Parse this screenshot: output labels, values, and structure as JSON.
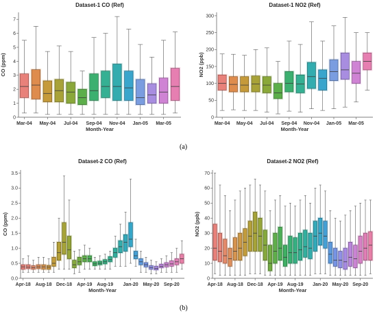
{
  "captions": {
    "a": "(a)",
    "b": "(b)"
  },
  "chart_data": [
    {
      "type": "boxplot",
      "title": "Dataset-1 CO (Ref)",
      "xlabel": "Month-Year",
      "ylabel": "CO (ppm)",
      "ylim": [
        0,
        7.5
      ],
      "yticks": [
        0,
        1,
        2,
        3,
        4,
        5,
        6,
        7
      ],
      "xtick_labels": [
        "Mar-04",
        "May-04",
        "Jul-04",
        "Sep-04",
        "Nov-04",
        "Jan-05",
        "Mar-05"
      ],
      "xtick_positions": [
        0,
        2,
        4,
        6,
        8,
        10,
        12
      ],
      "categories": [
        "Mar-04",
        "Apr-04",
        "May-04",
        "Jun-04",
        "Jul-04",
        "Aug-04",
        "Sep-04",
        "Oct-04",
        "Nov-04",
        "Dec-04",
        "Jan-05",
        "Feb-05",
        "Mar-05",
        "Apr-05"
      ],
      "boxes": [
        {
          "whislo": 0.3,
          "q1": 1.4,
          "med": 2.2,
          "q3": 3.1,
          "whishi": 5.5,
          "color": "#e8817a"
        },
        {
          "whislo": 0.3,
          "q1": 1.3,
          "med": 2.3,
          "q3": 3.4,
          "whishi": 6.5,
          "color": "#de8c4d"
        },
        {
          "whislo": 0.2,
          "q1": 1.1,
          "med": 1.7,
          "q3": 2.6,
          "whishi": 4.7,
          "color": "#c59a3a"
        },
        {
          "whislo": 0.2,
          "q1": 1.1,
          "med": 1.9,
          "q3": 2.7,
          "whishi": 5.1,
          "color": "#a8a238"
        },
        {
          "whislo": 0.2,
          "q1": 1.0,
          "med": 1.8,
          "q3": 2.5,
          "whishi": 4.7,
          "color": "#8aa83a"
        },
        {
          "whislo": 0.2,
          "q1": 0.9,
          "med": 1.4,
          "q3": 2.0,
          "whishi": 3.3,
          "color": "#5cae4a"
        },
        {
          "whislo": 0.2,
          "q1": 1.2,
          "med": 1.9,
          "q3": 3.1,
          "whishi": 5.7,
          "color": "#3cb070"
        },
        {
          "whislo": 0.2,
          "q1": 1.4,
          "med": 2.2,
          "q3": 3.3,
          "whishi": 6.0,
          "color": "#35b093"
        },
        {
          "whislo": 0.2,
          "q1": 1.2,
          "med": 2.2,
          "q3": 3.8,
          "whishi": 7.2,
          "color": "#33acaf"
        },
        {
          "whislo": 0.2,
          "q1": 1.2,
          "med": 2.1,
          "q3": 3.3,
          "whishi": 6.3,
          "color": "#3aa5cc"
        },
        {
          "whislo": 0.2,
          "q1": 0.9,
          "med": 1.4,
          "q3": 2.7,
          "whishi": 5.2,
          "color": "#7a9de0"
        },
        {
          "whislo": 0.2,
          "q1": 1.0,
          "med": 1.6,
          "q3": 2.4,
          "whishi": 4.3,
          "color": "#a88de0"
        },
        {
          "whislo": 0.2,
          "q1": 1.0,
          "med": 1.8,
          "q3": 2.8,
          "whishi": 5.5,
          "color": "#cf83d4"
        },
        {
          "whislo": 0.3,
          "q1": 1.2,
          "med": 2.2,
          "q3": 3.5,
          "whishi": 6.1,
          "color": "#e67fb1"
        }
      ]
    },
    {
      "type": "boxplot",
      "title": "Dataset-1 NO2 (Ref)",
      "xlabel": "Month-Year",
      "ylabel": "NO2 (ppb)",
      "ylim": [
        0,
        310
      ],
      "yticks": [
        0,
        50,
        100,
        150,
        200,
        250,
        300
      ],
      "xtick_labels": [
        "Mar-04",
        "May-04",
        "Jul-04",
        "Sep-04",
        "Nov-04",
        "Jan-05",
        "Mar-05"
      ],
      "xtick_positions": [
        0,
        2,
        4,
        6,
        8,
        10,
        12
      ],
      "categories": [
        "Mar-04",
        "Apr-04",
        "May-04",
        "Jun-04",
        "Jul-04",
        "Aug-04",
        "Sep-04",
        "Oct-04",
        "Nov-04",
        "Dec-04",
        "Jan-05",
        "Feb-05",
        "Mar-05",
        "Apr-05"
      ],
      "boxes": [
        {
          "whislo": 20,
          "q1": 80,
          "med": 100,
          "q3": 125,
          "whishi": 187,
          "color": "#e8817a"
        },
        {
          "whislo": 22,
          "q1": 75,
          "med": 97,
          "q3": 120,
          "whishi": 186,
          "color": "#de8c4d"
        },
        {
          "whislo": 20,
          "q1": 75,
          "med": 95,
          "q3": 120,
          "whishi": 183,
          "color": "#c59a3a"
        },
        {
          "whislo": 20,
          "q1": 75,
          "med": 98,
          "q3": 122,
          "whishi": 200,
          "color": "#a8a238"
        },
        {
          "whislo": 15,
          "q1": 72,
          "med": 95,
          "q3": 120,
          "whishi": 205,
          "color": "#8aa83a"
        },
        {
          "whislo": 10,
          "q1": 55,
          "med": 72,
          "q3": 100,
          "whishi": 165,
          "color": "#5cae4a"
        },
        {
          "whislo": 18,
          "q1": 75,
          "med": 100,
          "q3": 135,
          "whishi": 225,
          "color": "#3cb070"
        },
        {
          "whislo": 15,
          "q1": 72,
          "med": 98,
          "q3": 125,
          "whishi": 215,
          "color": "#35b093"
        },
        {
          "whislo": 25,
          "q1": 85,
          "med": 120,
          "q3": 162,
          "whishi": 282,
          "color": "#33acaf"
        },
        {
          "whislo": 20,
          "q1": 80,
          "med": 115,
          "q3": 140,
          "whishi": 225,
          "color": "#3aa5cc"
        },
        {
          "whislo": 25,
          "q1": 108,
          "med": 135,
          "q3": 170,
          "whishi": 270,
          "color": "#7a9de0"
        },
        {
          "whislo": 30,
          "q1": 112,
          "med": 140,
          "q3": 190,
          "whishi": 295,
          "color": "#a88de0"
        },
        {
          "whislo": 45,
          "q1": 100,
          "med": 130,
          "q3": 165,
          "whishi": 250,
          "color": "#cf83d4"
        },
        {
          "whislo": 80,
          "q1": 140,
          "med": 165,
          "q3": 190,
          "whishi": 250,
          "color": "#e67fb1"
        }
      ]
    },
    {
      "type": "boxplot",
      "title": "Dataset-2 CO (Ref)",
      "xlabel": "Month-Year",
      "ylabel": "CO (ppm)",
      "ylim": [
        0,
        3.6
      ],
      "yticks": [
        0.0,
        0.5,
        1.0,
        1.5,
        2.0,
        2.5,
        3.0,
        3.5
      ],
      "ytick_labels": [
        "0.0",
        "0.5",
        "1.0",
        "1.5",
        "2.0",
        "2.5",
        "3.0",
        "3.5"
      ],
      "xtick_labels": [
        "Apr-18",
        "Aug-18",
        "Dec-18",
        "Apr-19",
        "Aug-19",
        "Jan-20",
        "May-20",
        "Sep-20"
      ],
      "xtick_positions": [
        0,
        4,
        8,
        12,
        16,
        21,
        25,
        29
      ],
      "categories": [
        "Apr-18",
        "May-18",
        "Jun-18",
        "Jul-18",
        "Aug-18",
        "Sep-18",
        "Oct-18",
        "Nov-18",
        "Dec-18",
        "Jan-19",
        "Feb-19",
        "Mar-19",
        "Apr-19",
        "May-19",
        "Jun-19",
        "Jul-19",
        "Aug-19",
        "Sep-19",
        "Oct-19",
        "Nov-19",
        "Dec-19",
        "Jan-20",
        "Feb-20",
        "Mar-20",
        "Apr-20",
        "May-20",
        "Jun-20",
        "Jul-20",
        "Aug-20",
        "Sep-20",
        "Oct-20",
        "Nov-20"
      ],
      "boxes": [
        {
          "whislo": 0.2,
          "q1": 0.3,
          "med": 0.38,
          "q3": 0.45,
          "whishi": 0.65,
          "color": "#e8817a"
        },
        {
          "whislo": 0.2,
          "q1": 0.32,
          "med": 0.37,
          "q3": 0.45,
          "whishi": 0.75,
          "color": "#e6857a"
        },
        {
          "whislo": 0.2,
          "q1": 0.3,
          "med": 0.36,
          "q3": 0.42,
          "whishi": 0.6,
          "color": "#e38a6a"
        },
        {
          "whislo": 0.2,
          "q1": 0.32,
          "med": 0.38,
          "q3": 0.45,
          "whishi": 0.7,
          "color": "#dd8f5c"
        },
        {
          "whislo": 0.2,
          "q1": 0.3,
          "med": 0.38,
          "q3": 0.45,
          "whishi": 0.7,
          "color": "#d6944f"
        },
        {
          "whislo": 0.2,
          "q1": 0.3,
          "med": 0.37,
          "q3": 0.43,
          "whishi": 0.65,
          "color": "#cd9844"
        },
        {
          "whislo": 0.2,
          "q1": 0.4,
          "med": 0.5,
          "q3": 0.7,
          "whishi": 1.2,
          "color": "#c29c3c"
        },
        {
          "whislo": 0.3,
          "q1": 0.6,
          "med": 0.85,
          "q3": 1.2,
          "whishi": 2.0,
          "color": "#b5a038"
        },
        {
          "whislo": 0.3,
          "q1": 0.8,
          "med": 1.2,
          "q3": 1.85,
          "whishi": 3.4,
          "color": "#a6a338"
        },
        {
          "whislo": 0.3,
          "q1": 0.65,
          "med": 0.95,
          "q3": 1.4,
          "whishi": 2.6,
          "color": "#97a63a"
        },
        {
          "whislo": 0.15,
          "q1": 0.35,
          "med": 0.45,
          "q3": 0.6,
          "whishi": 0.9,
          "color": "#86a93d"
        },
        {
          "whislo": 0.2,
          "q1": 0.45,
          "med": 0.55,
          "q3": 0.7,
          "whishi": 0.95,
          "color": "#73ac42"
        },
        {
          "whislo": 0.3,
          "q1": 0.55,
          "med": 0.65,
          "q3": 0.75,
          "whishi": 1.1,
          "color": "#5fae4a"
        },
        {
          "whislo": 0.3,
          "q1": 0.55,
          "med": 0.65,
          "q3": 0.75,
          "whishi": 1.0,
          "color": "#4caf56"
        },
        {
          "whislo": 0.3,
          "q1": 0.42,
          "med": 0.48,
          "q3": 0.55,
          "whishi": 0.7,
          "color": "#3fb064"
        },
        {
          "whislo": 0.3,
          "q1": 0.45,
          "med": 0.5,
          "q3": 0.57,
          "whishi": 0.75,
          "color": "#39b073"
        },
        {
          "whislo": 0.3,
          "q1": 0.48,
          "med": 0.55,
          "q3": 0.62,
          "whishi": 0.8,
          "color": "#36b082"
        },
        {
          "whislo": 0.3,
          "q1": 0.55,
          "med": 0.62,
          "q3": 0.72,
          "whishi": 0.9,
          "color": "#34b090"
        },
        {
          "whislo": 0.4,
          "q1": 0.7,
          "med": 0.85,
          "q3": 1.0,
          "whishi": 1.4,
          "color": "#33af9e"
        },
        {
          "whislo": 0.4,
          "q1": 0.85,
          "med": 1.05,
          "q3": 1.25,
          "whishi": 1.8,
          "color": "#33adac"
        },
        {
          "whislo": 0.4,
          "q1": 0.9,
          "med": 1.2,
          "q3": 1.45,
          "whishi": 2.2,
          "color": "#34aaba"
        },
        {
          "whislo": 0.5,
          "q1": 1.05,
          "med": 1.3,
          "q3": 1.85,
          "whishi": 3.3,
          "color": "#36a6c8"
        },
        {
          "whislo": 0.4,
          "q1": 0.65,
          "med": 0.75,
          "q3": 0.9,
          "whishi": 1.3,
          "color": "#45a0d5"
        },
        {
          "whislo": 0.2,
          "q1": 0.45,
          "med": 0.55,
          "q3": 0.65,
          "whishi": 0.9,
          "color": "#5c9ade"
        },
        {
          "whislo": 0.2,
          "q1": 0.38,
          "med": 0.45,
          "q3": 0.52,
          "whishi": 0.7,
          "color": "#7794e4"
        },
        {
          "whislo": 0.15,
          "q1": 0.3,
          "med": 0.36,
          "q3": 0.42,
          "whishi": 0.6,
          "color": "#908fe6"
        },
        {
          "whislo": 0.15,
          "q1": 0.28,
          "med": 0.33,
          "q3": 0.4,
          "whishi": 0.55,
          "color": "#a78ae3"
        },
        {
          "whislo": 0.2,
          "q1": 0.35,
          "med": 0.4,
          "q3": 0.47,
          "whishi": 0.65,
          "color": "#ba86dc"
        },
        {
          "whislo": 0.2,
          "q1": 0.38,
          "med": 0.45,
          "q3": 0.52,
          "whishi": 0.75,
          "color": "#ca83d2"
        },
        {
          "whislo": 0.2,
          "q1": 0.4,
          "med": 0.48,
          "q3": 0.58,
          "whishi": 0.85,
          "color": "#d781c5"
        },
        {
          "whislo": 0.2,
          "q1": 0.45,
          "med": 0.55,
          "q3": 0.65,
          "whishi": 1.0,
          "color": "#e17fb6"
        },
        {
          "whislo": 0.3,
          "q1": 0.5,
          "med": 0.65,
          "q3": 0.8,
          "whishi": 1.25,
          "color": "#e77fa7"
        }
      ]
    },
    {
      "type": "boxplot",
      "title": "Dataset-2 NO2 (Ref)",
      "xlabel": "Month-Year",
      "ylabel": "NO2 (ppb)",
      "ylim": [
        0,
        72
      ],
      "yticks": [
        0,
        10,
        20,
        30,
        40,
        50,
        60,
        70
      ],
      "xtick_labels": [
        "Apr-18",
        "Aug-18",
        "Dec-18",
        "Apr-19",
        "Aug-19",
        "Jan-20",
        "May-20",
        "Sep-20"
      ],
      "xtick_positions": [
        0,
        4,
        8,
        12,
        16,
        21,
        25,
        29
      ],
      "categories": [
        "Apr-18",
        "May-18",
        "Jun-18",
        "Jul-18",
        "Aug-18",
        "Sep-18",
        "Oct-18",
        "Nov-18",
        "Dec-18",
        "Jan-19",
        "Feb-19",
        "Mar-19",
        "Apr-19",
        "May-19",
        "Jun-19",
        "Jul-19",
        "Aug-19",
        "Sep-19",
        "Oct-19",
        "Nov-19",
        "Dec-19",
        "Jan-20",
        "Feb-20",
        "Mar-20",
        "Apr-20",
        "May-20",
        "Jun-20",
        "Jul-20",
        "Aug-20",
        "Sep-20",
        "Oct-20",
        "Nov-20"
      ],
      "boxes": [
        {
          "whislo": 3,
          "q1": 12,
          "med": 20,
          "q3": 36,
          "whishi": 70,
          "color": "#e8817a"
        },
        {
          "whislo": 2,
          "q1": 11,
          "med": 18,
          "q3": 30,
          "whishi": 62,
          "color": "#e6857a"
        },
        {
          "whislo": 2,
          "q1": 10,
          "med": 15,
          "q3": 26,
          "whishi": 55,
          "color": "#e38a6a"
        },
        {
          "whislo": 2,
          "q1": 8,
          "med": 13,
          "q3": 20,
          "whishi": 45,
          "color": "#dd8f5c"
        },
        {
          "whislo": 2,
          "q1": 12,
          "med": 18,
          "q3": 27,
          "whishi": 52,
          "color": "#d6944f"
        },
        {
          "whislo": 2,
          "q1": 12,
          "med": 20,
          "q3": 30,
          "whishi": 58,
          "color": "#cd9844"
        },
        {
          "whislo": 2,
          "q1": 15,
          "med": 24,
          "q3": 33,
          "whishi": 60,
          "color": "#c29c3c"
        },
        {
          "whislo": 3,
          "q1": 18,
          "med": 28,
          "q3": 38,
          "whishi": 62,
          "color": "#b5a038"
        },
        {
          "whislo": 3,
          "q1": 18,
          "med": 30,
          "q3": 44,
          "whishi": 66,
          "color": "#a6a338"
        },
        {
          "whislo": 3,
          "q1": 18,
          "med": 28,
          "q3": 40,
          "whishi": 62,
          "color": "#97a63a"
        },
        {
          "whislo": 2,
          "q1": 12,
          "med": 22,
          "q3": 32,
          "whishi": 58,
          "color": "#86a93d"
        },
        {
          "whislo": 2,
          "q1": 5,
          "med": 10,
          "q3": 22,
          "whishi": 45,
          "color": "#73ac42"
        },
        {
          "whislo": 2,
          "q1": 10,
          "med": 18,
          "q3": 30,
          "whishi": 52,
          "color": "#5fae4a"
        },
        {
          "whislo": 2,
          "q1": 12,
          "med": 20,
          "q3": 34,
          "whishi": 55,
          "color": "#4caf56"
        },
        {
          "whislo": 2,
          "q1": 8,
          "med": 14,
          "q3": 22,
          "whishi": 48,
          "color": "#3fb064"
        },
        {
          "whislo": 2,
          "q1": 10,
          "med": 17,
          "q3": 28,
          "whishi": 50,
          "color": "#39b073"
        },
        {
          "whislo": 2,
          "q1": 10,
          "med": 17,
          "q3": 27,
          "whishi": 48,
          "color": "#36b082"
        },
        {
          "whislo": 2,
          "q1": 12,
          "med": 19,
          "q3": 30,
          "whishi": 52,
          "color": "#34b090"
        },
        {
          "whislo": 2,
          "q1": 14,
          "med": 21,
          "q3": 32,
          "whishi": 55,
          "color": "#33af9e"
        },
        {
          "whislo": 2,
          "q1": 13,
          "med": 20,
          "q3": 30,
          "whishi": 50,
          "color": "#33adac"
        },
        {
          "whislo": 3,
          "q1": 18,
          "med": 28,
          "q3": 38,
          "whishi": 60,
          "color": "#34aaba"
        },
        {
          "whislo": 3,
          "q1": 22,
          "med": 30,
          "q3": 40,
          "whishi": 62,
          "color": "#36a6c8"
        },
        {
          "whislo": 3,
          "q1": 20,
          "med": 28,
          "q3": 38,
          "whishi": 58,
          "color": "#45a0d5"
        },
        {
          "whislo": 2,
          "q1": 10,
          "med": 16,
          "q3": 24,
          "whishi": 45,
          "color": "#5c9ade"
        },
        {
          "whislo": 2,
          "q1": 8,
          "med": 12,
          "q3": 20,
          "whishi": 40,
          "color": "#7794e4"
        },
        {
          "whislo": 2,
          "q1": 7,
          "med": 12,
          "q3": 18,
          "whishi": 38,
          "color": "#908fe6"
        },
        {
          "whislo": 2,
          "q1": 6,
          "med": 11,
          "q3": 20,
          "whishi": 42,
          "color": "#a78ae3"
        },
        {
          "whislo": 2,
          "q1": 8,
          "med": 14,
          "q3": 24,
          "whishi": 45,
          "color": "#ba86dc"
        },
        {
          "whislo": 2,
          "q1": 7,
          "med": 13,
          "q3": 22,
          "whishi": 48,
          "color": "#ca83d2"
        },
        {
          "whislo": 2,
          "q1": 10,
          "med": 18,
          "q3": 28,
          "whishi": 50,
          "color": "#d781c5"
        },
        {
          "whislo": 2,
          "q1": 12,
          "med": 20,
          "q3": 30,
          "whishi": 52,
          "color": "#e17fb6"
        },
        {
          "whislo": 3,
          "q1": 12,
          "med": 22,
          "q3": 31,
          "whishi": 52,
          "color": "#e77fa7"
        }
      ]
    }
  ]
}
